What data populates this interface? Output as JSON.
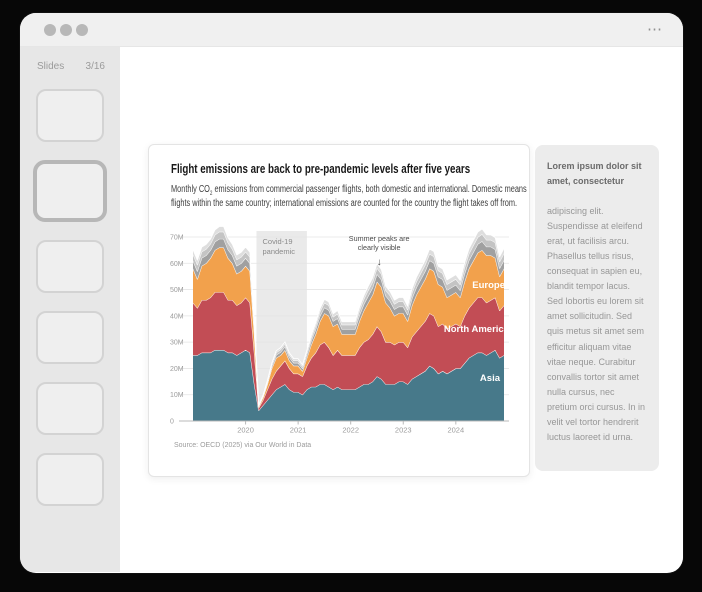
{
  "window": {
    "titlebar": {
      "menu_icon": "⋯"
    }
  },
  "sidebar": {
    "header": {
      "label": "Slides",
      "counter": "3/16"
    },
    "thumbnails": {
      "count": 6,
      "selected_index": 1
    }
  },
  "slide": {
    "title": "Flight emissions are back to pre-pandemic levels after five years",
    "subtitle_pre": "Monthly CO",
    "subtitle_sub": "2",
    "subtitle_post": " emissions from commercial passenger flights, both domestic and international. Domestic means flights within the same country; international emissions are counted for the country the flight takes off from.",
    "source": "Source: OECD (2025) via Our World in Data"
  },
  "notes_panel": {
    "heading": "Lorem ipsum dolor sit amet, consectetur",
    "body": "adipiscing elit. Suspendisse at eleifend erat, ut facilisis arcu. Phasellus tellus risus, consequat in sapien eu, blandit tempor lacus. Sed lobortis eu lorem sit amet sollicitudin. Sed quis metus sit amet sem efficitur aliquam vitae vitae neque. Curabitur convallis tortor sit amet nulla cursus, nec pretium orci cursus. In in velit vel tortor hendrerit luctus laoreet id urna.",
    "accent_bg": "#ececec"
  },
  "chart_data": {
    "type": "area",
    "stacked": true,
    "x_start": "2019-01",
    "x_end": "2024-12",
    "x_ticks": [
      {
        "label": "2020",
        "index": 12
      },
      {
        "label": "2021",
        "index": 24
      },
      {
        "label": "2022",
        "index": 36
      },
      {
        "label": "2023",
        "index": 48
      },
      {
        "label": "2024",
        "index": 60
      }
    ],
    "y_ticks": [
      0,
      10,
      20,
      30,
      40,
      50,
      60,
      70
    ],
    "y_tick_labels": [
      "0",
      "10M",
      "20M",
      "30M",
      "40M",
      "50M",
      "60M",
      "70M"
    ],
    "ylim": [
      0,
      74
    ],
    "grid": true,
    "covid_band": {
      "from_index": 14.5,
      "to_index": 26,
      "label_lines": [
        "Covid-19",
        "pandemic"
      ],
      "band_color": "#eaeaea"
    },
    "annotation": {
      "lines": [
        "Summer peaks are",
        "clearly visible"
      ],
      "arrow_glyph": "↓",
      "arrow_index": 42.5
    },
    "series": [
      {
        "name": "Asia",
        "label": "Asia",
        "color": "#47798a",
        "values": [
          25,
          25,
          26,
          26,
          26,
          27,
          27,
          27,
          26,
          26,
          25,
          26,
          27,
          26,
          14,
          4,
          6,
          8,
          10,
          12,
          13,
          14,
          12,
          11,
          11,
          10,
          12,
          13,
          13,
          14,
          14,
          13,
          12,
          13,
          12,
          12,
          12,
          12,
          13,
          14,
          14,
          15,
          17,
          16,
          14,
          14,
          14,
          15,
          15,
          14,
          16,
          17,
          18,
          19,
          21,
          20,
          18,
          19,
          18,
          19,
          20,
          20,
          22,
          24,
          25,
          26,
          26,
          25,
          26,
          27,
          24,
          25
        ]
      },
      {
        "name": "North America",
        "label": "North America",
        "color": "#c24d55",
        "values": [
          20,
          18,
          20,
          20,
          21,
          22,
          22,
          22,
          20,
          20,
          19,
          19,
          20,
          19,
          12,
          1,
          2,
          4,
          6,
          7,
          8,
          9,
          8,
          7,
          7,
          7,
          9,
          11,
          13,
          15,
          16,
          15,
          13,
          14,
          13,
          13,
          13,
          13,
          15,
          16,
          17,
          18,
          19,
          18,
          16,
          16,
          15,
          15,
          15,
          14,
          16,
          17,
          18,
          19,
          20,
          20,
          18,
          18,
          17,
          17,
          17,
          16,
          18,
          19,
          20,
          21,
          21,
          20,
          20,
          20,
          18,
          19
        ]
      },
      {
        "name": "Europe",
        "label": "Europe",
        "color": "#f2a14c",
        "values": [
          13,
          11,
          13,
          14,
          15,
          16,
          17,
          17,
          16,
          14,
          12,
          12,
          12,
          12,
          7,
          0.5,
          1,
          2,
          4,
          5,
          4,
          4,
          3,
          3,
          3,
          2,
          3,
          5,
          7,
          9,
          11,
          12,
          11,
          10,
          8,
          8,
          8,
          8,
          10,
          12,
          14,
          15,
          17,
          17,
          15,
          13,
          11,
          11,
          11,
          10,
          12,
          14,
          15,
          16,
          17,
          17,
          16,
          14,
          12,
          12,
          12,
          11,
          13,
          15,
          16,
          17,
          18,
          18,
          17,
          15,
          13,
          14
        ]
      },
      {
        "name": "other-1",
        "color": "#a0a0a0",
        "values": [
          3,
          3,
          3,
          3,
          3,
          3.2,
          3.3,
          3.3,
          3.2,
          3,
          3,
          3,
          3,
          3,
          2,
          0.3,
          0.4,
          0.6,
          0.9,
          1.1,
          1.2,
          1.3,
          1.2,
          1.1,
          1.1,
          1,
          1.2,
          1.5,
          1.8,
          2,
          2.2,
          2.2,
          2,
          2.1,
          2,
          2,
          2,
          2,
          2.2,
          2.4,
          2.6,
          2.7,
          2.9,
          2.8,
          2.6,
          2.6,
          2.5,
          2.5,
          2.5,
          2.4,
          2.6,
          2.8,
          2.9,
          3,
          3.1,
          3.1,
          2.9,
          2.9,
          2.8,
          2.8,
          2.8,
          2.7,
          3,
          3.1,
          3.2,
          3.3,
          3.4,
          3.3,
          3.3,
          3.3,
          3.1,
          3.2
        ]
      },
      {
        "name": "other-2",
        "color": "#c4c4c4",
        "values": [
          2.4,
          2.4,
          2.4,
          2.4,
          2.4,
          2.6,
          2.7,
          2.7,
          2.6,
          2.4,
          2.4,
          2.4,
          2.4,
          2.4,
          1.6,
          0.2,
          0.3,
          0.5,
          0.7,
          0.9,
          1,
          1,
          1,
          0.9,
          0.9,
          0.8,
          1,
          1.2,
          1.4,
          1.6,
          1.8,
          1.8,
          1.6,
          1.7,
          1.6,
          1.6,
          1.6,
          1.6,
          1.8,
          1.9,
          2.1,
          2.2,
          2.3,
          2.2,
          2.1,
          2.1,
          2,
          2,
          2,
          1.9,
          2.1,
          2.2,
          2.3,
          2.4,
          2.5,
          2.5,
          2.3,
          2.3,
          2.2,
          2.2,
          2.2,
          2.2,
          2.4,
          2.5,
          2.6,
          2.6,
          2.7,
          2.6,
          2.6,
          2.6,
          2.5,
          2.6
        ]
      },
      {
        "name": "other-3",
        "color": "#dedede",
        "values": [
          1.8,
          1.8,
          1.8,
          1.8,
          1.8,
          1.9,
          2,
          2,
          1.9,
          1.8,
          1.8,
          1.8,
          1.8,
          1.8,
          1.2,
          0.2,
          0.2,
          0.4,
          0.5,
          0.7,
          0.7,
          0.8,
          0.7,
          0.7,
          0.7,
          0.6,
          0.7,
          0.9,
          1.1,
          1.2,
          1.3,
          1.3,
          1.2,
          1.3,
          1.2,
          1.2,
          1.2,
          1.2,
          1.3,
          1.4,
          1.6,
          1.6,
          1.7,
          1.7,
          1.6,
          1.6,
          1.5,
          1.5,
          1.5,
          1.4,
          1.6,
          1.7,
          1.7,
          1.8,
          1.9,
          1.9,
          1.7,
          1.7,
          1.7,
          1.7,
          1.7,
          1.6,
          1.8,
          1.9,
          1.9,
          2,
          2,
          2,
          1.9,
          1.9,
          1.9,
          1.9
        ]
      }
    ]
  }
}
